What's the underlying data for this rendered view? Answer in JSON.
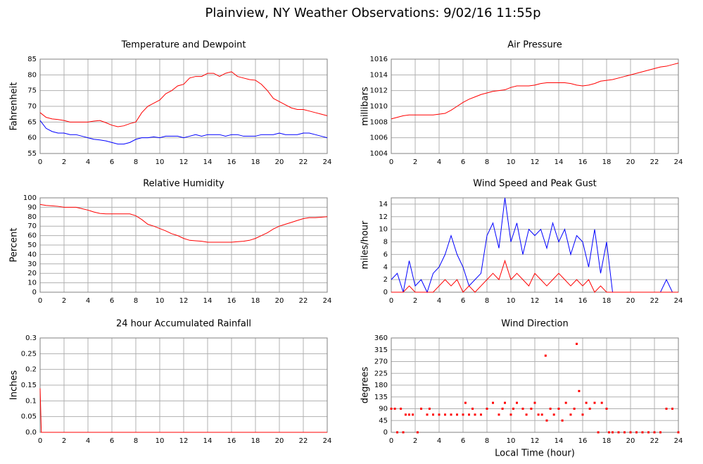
{
  "title": "Plainview, NY Weather Observations: 9/02/16 11:55p",
  "chart_data": [
    {
      "type": "line",
      "title": "Temperature and Dewpoint",
      "ylabel": "Fahrenheit",
      "x": [
        0,
        0.5,
        1,
        1.5,
        2,
        2.5,
        3,
        3.5,
        4,
        4.5,
        5,
        5.5,
        6,
        6.5,
        7,
        7.5,
        8,
        8.5,
        9,
        9.5,
        10,
        10.5,
        11,
        11.5,
        12,
        12.5,
        13,
        13.5,
        14,
        14.5,
        15,
        15.5,
        16,
        16.5,
        17,
        17.5,
        18,
        18.5,
        19,
        19.5,
        20,
        20.5,
        21,
        21.5,
        22,
        22.5,
        23,
        23.5,
        24
      ],
      "series": [
        {
          "color": "#ff0000",
          "values": [
            68,
            66.5,
            66,
            65.8,
            65.5,
            65,
            65,
            65,
            65,
            65.3,
            65.5,
            64.8,
            64,
            63.5,
            63.8,
            64.5,
            65,
            68,
            70,
            71,
            72,
            74,
            75,
            76.5,
            77,
            79,
            79.5,
            79.5,
            80.5,
            80.5,
            79.5,
            80.5,
            81,
            79.5,
            79,
            78.5,
            78.3,
            77,
            75,
            72.5,
            71.5,
            70.5,
            69.5,
            69,
            69,
            68.5,
            68,
            67.5,
            67
          ]
        },
        {
          "color": "#0000ff",
          "values": [
            65.5,
            63,
            62,
            61.5,
            61.5,
            61,
            61,
            60.5,
            60,
            59.5,
            59.3,
            59,
            58.5,
            58,
            58,
            58.5,
            59.5,
            60,
            60,
            60.3,
            60,
            60.5,
            60.5,
            60.5,
            60,
            60.5,
            61,
            60.5,
            61,
            61,
            61,
            60.5,
            61,
            61,
            60.5,
            60.5,
            60.5,
            61,
            61,
            61,
            61.5,
            61,
            61,
            61,
            61.5,
            61.5,
            61,
            60.5,
            60
          ]
        }
      ],
      "xlim": [
        0,
        24
      ],
      "xticks": [
        0,
        2,
        4,
        6,
        8,
        10,
        12,
        14,
        16,
        18,
        20,
        22,
        24
      ],
      "ylim": [
        55,
        85
      ],
      "yticks": [
        55,
        60,
        65,
        70,
        75,
        80,
        85
      ],
      "grid": true
    },
    {
      "type": "line",
      "title": "Air Pressure",
      "ylabel": "millibars",
      "x": [
        0,
        0.5,
        1,
        1.5,
        2,
        2.5,
        3,
        3.5,
        4,
        4.5,
        5,
        5.5,
        6,
        6.5,
        7,
        7.5,
        8,
        8.5,
        9,
        9.5,
        10,
        10.5,
        11,
        11.5,
        12,
        12.5,
        13,
        13.5,
        14,
        14.5,
        15,
        15.5,
        16,
        16.5,
        17,
        17.5,
        18,
        18.5,
        19,
        19.5,
        20,
        20.5,
        21,
        21.5,
        22,
        22.5,
        23,
        23.5,
        24
      ],
      "series": [
        {
          "color": "#ff0000",
          "values": [
            1008.4,
            1008.6,
            1008.8,
            1008.9,
            1008.9,
            1008.9,
            1008.9,
            1008.9,
            1009,
            1009.1,
            1009.5,
            1010,
            1010.5,
            1010.9,
            1011.2,
            1011.5,
            1011.7,
            1011.9,
            1012,
            1012.1,
            1012.4,
            1012.6,
            1012.6,
            1012.6,
            1012.7,
            1012.9,
            1013,
            1013,
            1013,
            1013,
            1012.9,
            1012.7,
            1012.6,
            1012.7,
            1012.9,
            1013.2,
            1013.3,
            1013.4,
            1013.6,
            1013.8,
            1014,
            1014.2,
            1014.4,
            1014.6,
            1014.8,
            1015,
            1015.1,
            1015.3,
            1015.5
          ]
        }
      ],
      "xlim": [
        0,
        24
      ],
      "xticks": [
        0,
        2,
        4,
        6,
        8,
        10,
        12,
        14,
        16,
        18,
        20,
        22,
        24
      ],
      "ylim": [
        1004,
        1016
      ],
      "yticks": [
        1004,
        1006,
        1008,
        1010,
        1012,
        1014,
        1016
      ],
      "grid": true
    },
    {
      "type": "line",
      "title": "Relative Humidity",
      "ylabel": "Percent",
      "x": [
        0,
        0.5,
        1,
        1.5,
        2,
        2.5,
        3,
        3.5,
        4,
        4.5,
        5,
        5.5,
        6,
        6.5,
        7,
        7.5,
        8,
        8.5,
        9,
        9.5,
        10,
        10.5,
        11,
        11.5,
        12,
        12.5,
        13,
        13.5,
        14,
        14.5,
        15,
        15.5,
        16,
        16.5,
        17,
        17.5,
        18,
        18.5,
        19,
        19.5,
        20,
        20.5,
        21,
        21.5,
        22,
        22.5,
        23,
        23.5,
        24
      ],
      "series": [
        {
          "color": "#ff0000",
          "values": [
            93,
            92,
            91.5,
            91,
            90,
            90,
            90,
            88.5,
            87,
            85,
            83.5,
            83,
            83,
            83,
            83,
            83,
            81,
            77,
            72,
            70,
            67.5,
            65,
            62,
            60,
            57,
            55,
            54.5,
            54,
            53,
            53,
            53,
            53,
            53,
            53.5,
            54,
            55,
            57,
            60,
            63,
            67,
            70,
            72,
            74,
            76,
            78,
            79,
            79,
            79.5,
            80
          ]
        }
      ],
      "xlim": [
        0,
        24
      ],
      "xticks": [
        0,
        2,
        4,
        6,
        8,
        10,
        12,
        14,
        16,
        18,
        20,
        22,
        24
      ],
      "ylim": [
        0,
        100
      ],
      "yticks": [
        0,
        10,
        20,
        30,
        40,
        50,
        60,
        70,
        80,
        90,
        100
      ],
      "grid": true
    },
    {
      "type": "line",
      "title": "Wind Speed and Peak Gust",
      "ylabel": "miles/hour",
      "x": [
        0,
        0.5,
        1,
        1.5,
        2,
        2.5,
        3,
        3.5,
        4,
        4.5,
        5,
        5.5,
        6,
        6.5,
        7,
        7.5,
        8,
        8.5,
        9,
        9.5,
        10,
        10.5,
        11,
        11.5,
        12,
        12.5,
        13,
        13.5,
        14,
        14.5,
        15,
        15.5,
        16,
        16.5,
        17,
        17.5,
        18,
        18.5,
        19,
        19.5,
        20,
        20.5,
        21,
        21.5,
        22,
        22.5,
        23,
        23.5,
        24
      ],
      "series": [
        {
          "color": "#0000ff",
          "values": [
            2,
            3,
            0,
            5,
            1,
            2,
            0,
            3,
            4,
            6,
            9,
            6,
            4,
            1,
            2,
            3,
            9,
            11,
            7,
            15,
            8,
            11,
            6,
            10,
            9,
            10,
            7,
            11,
            8,
            10,
            6,
            9,
            8,
            4,
            10,
            3,
            8,
            0,
            0,
            0,
            0,
            0,
            0,
            0,
            0,
            0,
            2,
            0,
            0
          ]
        },
        {
          "color": "#ff0000",
          "values": [
            0,
            0,
            0,
            1,
            0,
            0,
            0,
            0,
            1,
            2,
            1,
            2,
            0,
            1,
            0,
            1,
            2,
            3,
            2,
            5,
            2,
            3,
            2,
            1,
            3,
            2,
            1,
            2,
            3,
            2,
            1,
            2,
            1,
            2,
            0,
            1,
            0,
            0,
            0,
            0,
            0,
            0,
            0,
            0,
            0,
            0,
            0,
            0,
            0
          ]
        }
      ],
      "xlim": [
        0,
        24
      ],
      "xticks": [
        0,
        2,
        4,
        6,
        8,
        10,
        12,
        14,
        16,
        18,
        20,
        22,
        24
      ],
      "ylim": [
        0,
        15
      ],
      "yticks": [
        0,
        2,
        4,
        6,
        8,
        10,
        12,
        14
      ],
      "grid": true
    },
    {
      "type": "line",
      "title": "24 hour Accumulated Rainfall",
      "ylabel": "Inches",
      "x": [
        0,
        0.1,
        24
      ],
      "series": [
        {
          "color": "#ff0000",
          "values": [
            0.14,
            0,
            0
          ]
        }
      ],
      "xlim": [
        0,
        24
      ],
      "xticks": [
        0,
        2,
        4,
        6,
        8,
        10,
        12,
        14,
        16,
        18,
        20,
        22,
        24
      ],
      "ylim": [
        0,
        0.3
      ],
      "yticks": [
        {
          "value": 0,
          "label": "0.0"
        },
        0.05,
        0.1,
        0.15,
        0.2,
        0.25,
        0.3
      ],
      "grid": true
    },
    {
      "type": "scatter",
      "title": "Wind Direction",
      "ylabel": "degrees",
      "xlabel": "Local Time (hour)",
      "x": [
        0,
        0.3,
        0.5,
        0.8,
        1,
        1.2,
        1.5,
        1.8,
        2.2,
        2.5,
        3,
        3.2,
        3.5,
        4,
        4.5,
        5,
        5.5,
        6,
        6.2,
        6.5,
        6.8,
        7,
        7.5,
        8,
        8.5,
        9,
        9.3,
        9.5,
        10,
        10.2,
        10.5,
        11,
        11.3,
        11.7,
        12,
        12.3,
        12.6,
        12.9,
        13,
        13.3,
        13.6,
        14,
        14.3,
        14.6,
        15,
        15.3,
        15.5,
        15.7,
        16,
        16.3,
        16.6,
        17,
        17.3,
        17.6,
        18,
        18.2,
        18.5,
        19,
        19.5,
        20,
        20.5,
        21,
        21.5,
        22,
        22.5,
        23,
        23.5,
        24
      ],
      "series": [
        {
          "color": "#ff0000",
          "values": [
            90,
            90,
            0,
            90,
            0,
            67.5,
            67.5,
            67.5,
            0,
            90,
            67.5,
            90,
            67.5,
            67.5,
            67.5,
            67.5,
            67.5,
            67.5,
            112.5,
            67.5,
            90,
            67.5,
            67.5,
            90,
            112.5,
            67.5,
            90,
            112.5,
            67.5,
            90,
            112.5,
            90,
            67.5,
            90,
            112.5,
            67.5,
            67.5,
            292.5,
            45,
            90,
            67.5,
            90,
            45,
            112.5,
            67.5,
            90,
            337.5,
            157.5,
            67.5,
            112.5,
            90,
            112.5,
            0,
            112.5,
            90,
            0,
            0,
            0,
            0,
            0,
            0,
            0,
            0,
            0,
            0,
            90,
            90,
            0
          ]
        }
      ],
      "xlim": [
        0,
        24
      ],
      "xticks": [
        0,
        2,
        4,
        6,
        8,
        10,
        12,
        14,
        16,
        18,
        20,
        22,
        24
      ],
      "ylim": [
        0,
        360
      ],
      "yticks": [
        0,
        45,
        90,
        135,
        180,
        225,
        270,
        315,
        360
      ],
      "grid": true
    }
  ]
}
